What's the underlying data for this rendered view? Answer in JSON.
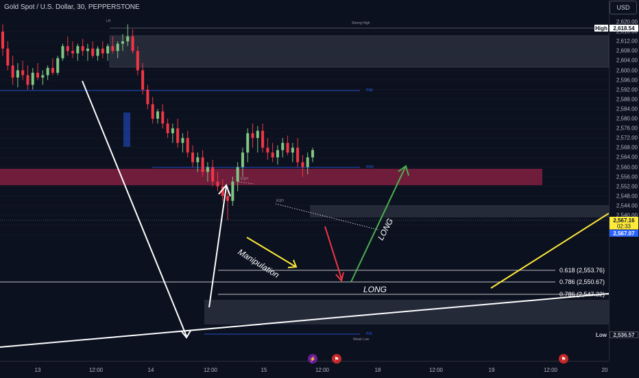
{
  "header": {
    "title": "Gold Spot / U.S. Dollar, 30, PEPPERSTONE",
    "currency_button": "USD"
  },
  "price_axis": {
    "ticks": [
      "2,620.00",
      "2,616.00",
      "2,612.00",
      "2,608.00",
      "2,604.00",
      "2,600.00",
      "2,596.00",
      "2,592.00",
      "2,588.00",
      "2,584.00",
      "2,580.00",
      "2,576.00",
      "2,572.00",
      "2,568.00",
      "2,564.00",
      "2,560.00",
      "2,556.00",
      "2,552.00",
      "2,548.00",
      "2,544.00",
      "2,540.00",
      "2,532.00"
    ],
    "high_tag": {
      "label": "High",
      "value": "2,618.54"
    },
    "low_tag": {
      "label": "Low",
      "value": "2,536.57"
    },
    "current_price": {
      "price": "2,567.16",
      "countdown": "02:33"
    },
    "current_price_2": "2,567.07"
  },
  "time_axis": {
    "ticks": [
      "13",
      "12:00",
      "14",
      "12:00",
      "15",
      "12:00",
      "18",
      "12:00",
      "19",
      "12:00",
      "20"
    ]
  },
  "annotations": {
    "lh": "LH",
    "strong_high": "Strong High",
    "pwl": "PWL",
    "pdh": "PDH",
    "eqh_1": "EQH",
    "eqh_2": "EQH",
    "pdl": "PDL",
    "weak_low": "Weak Low",
    "manipulation": "Manipulation",
    "long_1": "LONG",
    "long_2": "LONG",
    "fib_0618": "0.618 (2,553.76)",
    "fib_0786_a": "0.786 (2,550.67)",
    "fib_0786_b": "0.786 (2,547.32)"
  },
  "chart_data": {
    "type": "candlestick",
    "symbol": "Gold Spot / U.S. Dollar",
    "timeframe": "30",
    "ylim": [
      2530,
      2622
    ],
    "x_labels": [
      "13",
      "12:00",
      "14",
      "12:00",
      "15",
      "12:00",
      "18",
      "12:00",
      "19",
      "12:00",
      "20"
    ],
    "candles": [
      [
        2616,
        2619,
        2606,
        2609
      ],
      [
        2609,
        2612,
        2600,
        2602
      ],
      [
        2602,
        2606,
        2594,
        2597
      ],
      [
        2597,
        2603,
        2593,
        2600
      ],
      [
        2600,
        2604,
        2596,
        2598
      ],
      [
        2598,
        2602,
        2592,
        2594
      ],
      [
        2594,
        2601,
        2592,
        2599
      ],
      [
        2599,
        2603,
        2596,
        2597
      ],
      [
        2597,
        2600,
        2594,
        2598
      ],
      [
        2598,
        2602,
        2596,
        2601
      ],
      [
        2601,
        2605,
        2598,
        2599
      ],
      [
        2599,
        2606,
        2598,
        2605
      ],
      [
        2605,
        2611,
        2604,
        2610
      ],
      [
        2610,
        2614,
        2606,
        2608
      ],
      [
        2608,
        2612,
        2605,
        2607
      ],
      [
        2607,
        2611,
        2604,
        2610
      ],
      [
        2610,
        2613,
        2606,
        2608
      ],
      [
        2608,
        2611,
        2604,
        2609
      ],
      [
        2609,
        2612,
        2605,
        2606
      ],
      [
        2606,
        2610,
        2604,
        2609
      ],
      [
        2609,
        2612,
        2605,
        2607
      ],
      [
        2607,
        2611,
        2604,
        2610
      ],
      [
        2610,
        2614,
        2607,
        2608
      ],
      [
        2608,
        2612,
        2605,
        2611
      ],
      [
        2611,
        2615,
        2608,
        2612
      ],
      [
        2612,
        2619,
        2610,
        2614
      ],
      [
        2614,
        2617,
        2607,
        2608
      ],
      [
        2608,
        2610,
        2598,
        2600
      ],
      [
        2600,
        2603,
        2590,
        2592
      ],
      [
        2592,
        2594,
        2584,
        2586
      ],
      [
        2586,
        2589,
        2578,
        2580
      ],
      [
        2580,
        2584,
        2578,
        2583
      ],
      [
        2583,
        2586,
        2576,
        2578
      ],
      [
        2578,
        2580,
        2572,
        2574
      ],
      [
        2574,
        2578,
        2570,
        2576
      ],
      [
        2576,
        2580,
        2568,
        2570
      ],
      [
        2570,
        2574,
        2566,
        2572
      ],
      [
        2572,
        2575,
        2564,
        2566
      ],
      [
        2566,
        2569,
        2560,
        2562
      ],
      [
        2562,
        2566,
        2558,
        2564
      ],
      [
        2564,
        2567,
        2556,
        2558
      ],
      [
        2558,
        2562,
        2554,
        2560
      ],
      [
        2560,
        2563,
        2552,
        2554
      ],
      [
        2554,
        2558,
        2550,
        2552
      ],
      [
        2552,
        2555,
        2546,
        2548
      ],
      [
        2548,
        2552,
        2538,
        2546
      ],
      [
        2546,
        2556,
        2544,
        2554
      ],
      [
        2554,
        2562,
        2550,
        2560
      ],
      [
        2560,
        2568,
        2556,
        2566
      ],
      [
        2566,
        2576,
        2562,
        2574
      ],
      [
        2574,
        2578,
        2568,
        2572
      ],
      [
        2572,
        2577,
        2566,
        2575
      ],
      [
        2575,
        2578,
        2566,
        2568
      ],
      [
        2568,
        2572,
        2563,
        2566
      ],
      [
        2566,
        2570,
        2562,
        2564
      ],
      [
        2564,
        2569,
        2561,
        2567
      ],
      [
        2567,
        2572,
        2564,
        2570
      ],
      [
        2570,
        2573,
        2565,
        2566
      ],
      [
        2566,
        2570,
        2562,
        2568
      ],
      [
        2568,
        2572,
        2560,
        2562
      ],
      [
        2562,
        2565,
        2556,
        2560
      ],
      [
        2560,
        2566,
        2557,
        2564
      ],
      [
        2564,
        2568,
        2562,
        2567
      ]
    ],
    "levels": [
      {
        "name": "PWL",
        "price": 2601.5
      },
      {
        "name": "PDH",
        "price": 2581
      },
      {
        "name": "PDL",
        "price": 2537
      },
      {
        "name": "0.618",
        "price": 2553.76
      },
      {
        "name": "0.786",
        "price": 2550.67
      },
      {
        "name": "0.786",
        "price": 2547.32
      },
      {
        "name": "Strong High",
        "price": 2619
      }
    ]
  },
  "colors": {
    "background": "#0c111f",
    "bull": "#81c784",
    "bear": "#f23645",
    "supply_zone": "#7a1f3d",
    "gray_zone": "#3b3f4d",
    "level_line": "#2962ff",
    "arrow_green": "#4caf50",
    "arrow_red": "#f23645",
    "arrow_yellow": "#ffeb3b",
    "price_tag": "#2962ff",
    "countdown_tag": "#ffeb3b"
  }
}
